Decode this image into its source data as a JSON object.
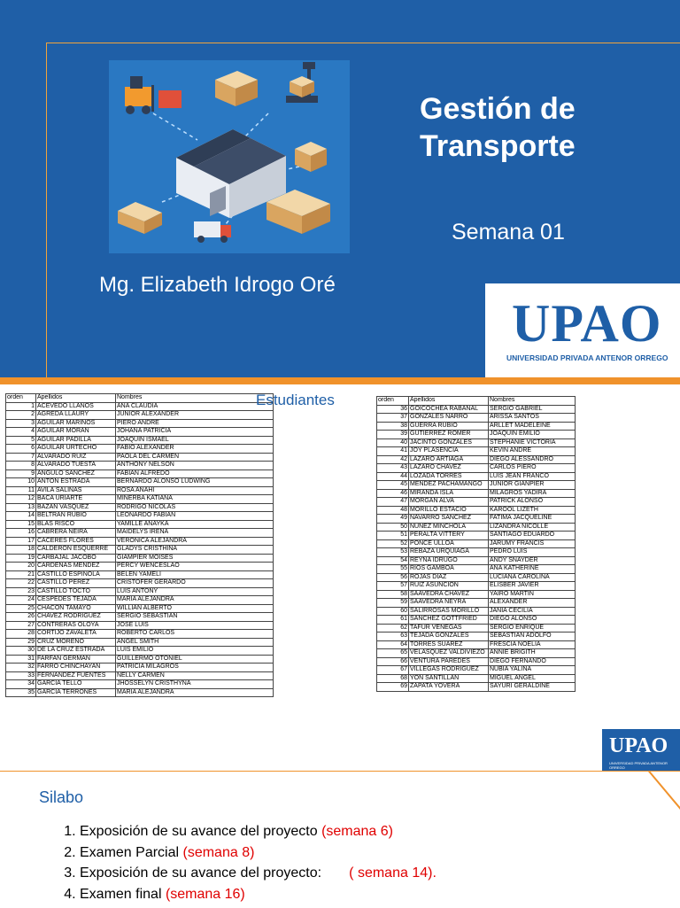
{
  "slide1": {
    "title_line1": "Gestión de",
    "title_line2": "Transporte",
    "week": "Semana 01",
    "teacher": "Mg. Elizabeth Idrogo Oré",
    "logo": "UPAO",
    "logo_sub": "UNIVERSIDAD PRIVADA ANTENOR ORREGO"
  },
  "slide2": {
    "heading": "Estudiantes",
    "headers": [
      "orden",
      "Apellidos",
      "Nombres"
    ],
    "students_left": [
      [
        "1",
        "ACEVEDO LLANOS",
        "ANA CLAUDIA"
      ],
      [
        "2",
        "AGREDA LLAURY",
        "JUNIOR ALEXANDER"
      ],
      [
        "3",
        "AGUILAR MARIÑOS",
        "PIERO ANDRE"
      ],
      [
        "4",
        "AGUILAR MORAN",
        "JOHANA PATRICIA"
      ],
      [
        "5",
        "AGUILAR PADILLA",
        "JOAQUIN ISMAEL"
      ],
      [
        "6",
        "AGUILAR URTECHO",
        "FABIO ALEXANDER"
      ],
      [
        "7",
        "ALVARADO RUIZ",
        "PAOLA DEL CARMEN"
      ],
      [
        "8",
        "ALVARADO TUESTA",
        "ANTHONY NELSON"
      ],
      [
        "9",
        "ANGULO SANCHEZ",
        "FABIAN ALFREDO"
      ],
      [
        "10",
        "ANTON ESTRADA",
        "BERNARDO ALONSO LUDWING"
      ],
      [
        "11",
        "AVILA SALINAS",
        "ROSA ANAHI"
      ],
      [
        "12",
        "BACA URIARTE",
        "MINERBA KATIANA"
      ],
      [
        "13",
        "BAZAN VASQUEZ",
        "RODRIGO NICOLAS"
      ],
      [
        "14",
        "BELTRAN RUBIO",
        "LEONARDO FABIAN"
      ],
      [
        "15",
        "BLAS RISCO",
        "YAMILLE ANAYKA"
      ],
      [
        "16",
        "CABRERA NEIRA",
        "MAIDELYS IRENA"
      ],
      [
        "17",
        "CACERES FLORES",
        "VERONICA ALEJANDRA"
      ],
      [
        "18",
        "CALDERON ESQUERRE",
        "GLADYS CRISTHINA"
      ],
      [
        "19",
        "CARBAJAL JACOBO",
        "GIAMPIER MOISES"
      ],
      [
        "20",
        "CARDENAS MENDEZ",
        "PERCY WENCESLAO"
      ],
      [
        "21",
        "CASTILLO ESPINOLA",
        "BELEN YAMELI"
      ],
      [
        "22",
        "CASTILLO PEREZ",
        "CRISTOFER GERARDO"
      ],
      [
        "23",
        "CASTILLO TOCTO",
        "LUIS ANTONY"
      ],
      [
        "24",
        "CESPEDES TEJADA",
        "MARIA ALEJANDRA"
      ],
      [
        "25",
        "CHACON TAMAYO",
        "WILLIAN ALBERTO"
      ],
      [
        "26",
        "CHAVEZ RODRIGUEZ",
        "SERGIO SEBASTIAN"
      ],
      [
        "27",
        "CONTRERAS OLOYA",
        "JOSE LUIS"
      ],
      [
        "28",
        "CORTIJO ZAVALETA",
        "ROBERTO CARLOS"
      ],
      [
        "29",
        "CRUZ MORENO",
        "ANGEL SMITH"
      ],
      [
        "30",
        "DE LA CRUZ ESTRADA",
        "LUIS EMILIO"
      ],
      [
        "31",
        "FARFAN GERMAN",
        "GUILLERMO OTONIEL"
      ],
      [
        "32",
        "FARRO CHINCHAYAN",
        "PATRICIA MILAGROS"
      ],
      [
        "33",
        "FERNANDEZ FUENTES",
        "NELLY CARMEN"
      ],
      [
        "34",
        "GARCIA TELLO",
        "JHOSSELYN CRISTHYNA"
      ],
      [
        "35",
        "GARCIA TERRONES",
        "MARIA ALEJANDRA"
      ]
    ],
    "students_right": [
      [
        "36",
        "GOICOCHEA RABANAL",
        "SERGIO GABRIEL"
      ],
      [
        "37",
        "GONZALES NARRO",
        "ARISSA SANTOS"
      ],
      [
        "38",
        "GUERRA RUBIO",
        "ARLLET MADELEINE"
      ],
      [
        "39",
        "GUTIERREZ ROMER",
        "JOAQUIN EMILIO"
      ],
      [
        "40",
        "JACINTO GONZALES",
        "STEPHANIE VICTORIA"
      ],
      [
        "41",
        "JOY PLASENCIA",
        "KEVIN ANDRE"
      ],
      [
        "42",
        "LAZARO ARTIAGA",
        "DIEGO ALESSANDRO"
      ],
      [
        "43",
        "LAZARO CHAVEZ",
        "CARLOS PIERO"
      ],
      [
        "44",
        "LOZADA TORRES",
        "LUIS JEAN FRANCO"
      ],
      [
        "45",
        "MENDEZ PACHAMANGO",
        "JUNIOR GIANPIER"
      ],
      [
        "46",
        "MIRANDA ISLA",
        "MILAGROS YADIRA"
      ],
      [
        "47",
        "MORGAN ALVA",
        "PATRICK ALONSO"
      ],
      [
        "48",
        "MORILLO ESTACIO",
        "KAROOL LIZETH"
      ],
      [
        "49",
        "NAVARRO SANCHEZ",
        "FATIMA JACQUELINE"
      ],
      [
        "50",
        "NUÑEZ MINCHOLA",
        "LIZANDRA NICOLLE"
      ],
      [
        "51",
        "PERALTA VITTERY",
        "SANTIAGO EDUARDO"
      ],
      [
        "52",
        "PONCE ULLOA",
        "JARUMY FRANCIS"
      ],
      [
        "53",
        "REBAZA URQUIAGA",
        "PEDRO LUIS"
      ],
      [
        "54",
        "REYNA IDRUGO",
        "ANDY SNAYDER"
      ],
      [
        "55",
        "RIOS GAMBOA",
        "ANA KATHERINE"
      ],
      [
        "56",
        "ROJAS DIAZ",
        "LUCIANA CAROLINA"
      ],
      [
        "57",
        "RUIZ ASUNCION",
        "ELISBER JAVIER"
      ],
      [
        "58",
        "SAAVEDRA CHAVEZ",
        "YAIRO MARTIN"
      ],
      [
        "59",
        "SAAVEDRA NEYRA",
        "ALEXANDER"
      ],
      [
        "60",
        "SALIRROSAS MORILLO",
        "JANIA CECILIA"
      ],
      [
        "61",
        "SANCHEZ GOTTFRIED",
        "DIEGO ALONSO"
      ],
      [
        "62",
        "TAFUR VENEGAS",
        "SERGIO ENRIQUE"
      ],
      [
        "63",
        "TEJADA GONZALES",
        "SEBASTIAN ADOLFO"
      ],
      [
        "64",
        "TORRES SUAREZ",
        "FRESCIA NOELIA"
      ],
      [
        "65",
        "VELASQUEZ VALDIVIEZO",
        "ANNIE BRIGITH"
      ],
      [
        "66",
        "VENTURA PAREDES",
        "DIEGO FERNANDO"
      ],
      [
        "67",
        "VILLEGAS RODRIGUEZ",
        "NUBIA YALINA"
      ],
      [
        "68",
        "YON SANTILLAN",
        "MIGUEL ANGEL"
      ],
      [
        "69",
        "ZAPATA YOVERA",
        "SAYURI GERALDINE"
      ]
    ],
    "mini_logo": "UPAO",
    "mini_logo_sub": "UNIVERSIDAD PRIVADA ANTENOR ORREGO"
  },
  "slide3": {
    "title": "Silabo",
    "items": [
      {
        "text": "Exposición de su avance del proyecto ",
        "red": "(semana 6)"
      },
      {
        "text": "Examen Parcial ",
        "red": "(semana 8)"
      },
      {
        "text": "Exposición de su avance del proyecto:       ",
        "red": "( semana 14)."
      },
      {
        "text": "Examen final ",
        "red": "(semana 16)"
      }
    ]
  },
  "colors": {
    "brand_blue": "#1f5fa7",
    "accent_orange": "#f0922b",
    "highlight_red": "#e00000"
  }
}
